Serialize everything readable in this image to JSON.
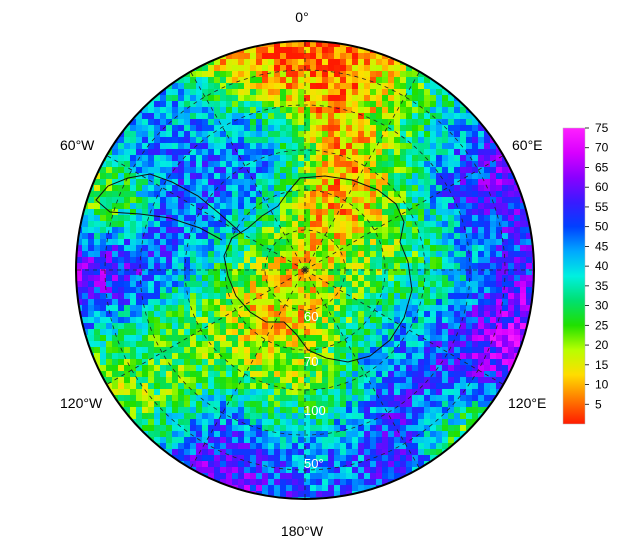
{
  "map": {
    "projection": "south-polar-stereographic",
    "longitude_labels": [
      {
        "text": "0°",
        "lon": 0
      },
      {
        "text": "60°E",
        "lon": 60
      },
      {
        "text": "120°E",
        "lon": 120
      },
      {
        "text": "180°W",
        "lon": 180
      },
      {
        "text": "120°W",
        "lon": -120
      },
      {
        "text": "60°W",
        "lon": -60
      }
    ],
    "latitude_labels": [
      {
        "text": "60",
        "lat": 60
      },
      {
        "text": "70",
        "lat": 70
      },
      {
        "text": "100",
        "lat": 100
      },
      {
        "text": "50°",
        "lat": 50
      }
    ],
    "grid": "dashed",
    "field_description": "gridded scalar field, values 0–75, color-coded"
  },
  "colorbar": {
    "min": 0,
    "max": 75,
    "ticks": [
      "75",
      "70",
      "65",
      "60",
      "55",
      "50",
      "45",
      "40",
      "35",
      "30",
      "25",
      "20",
      "15",
      "10",
      "5"
    ],
    "colors": [
      "#ff1a00",
      "#ff7a00",
      "#ffdd00",
      "#b8ff00",
      "#20e000",
      "#00e070",
      "#00f0e0",
      "#00a8ff",
      "#0040ff",
      "#3a1aff",
      "#8a00ff",
      "#d800ff",
      "#ff20ff"
    ]
  }
}
